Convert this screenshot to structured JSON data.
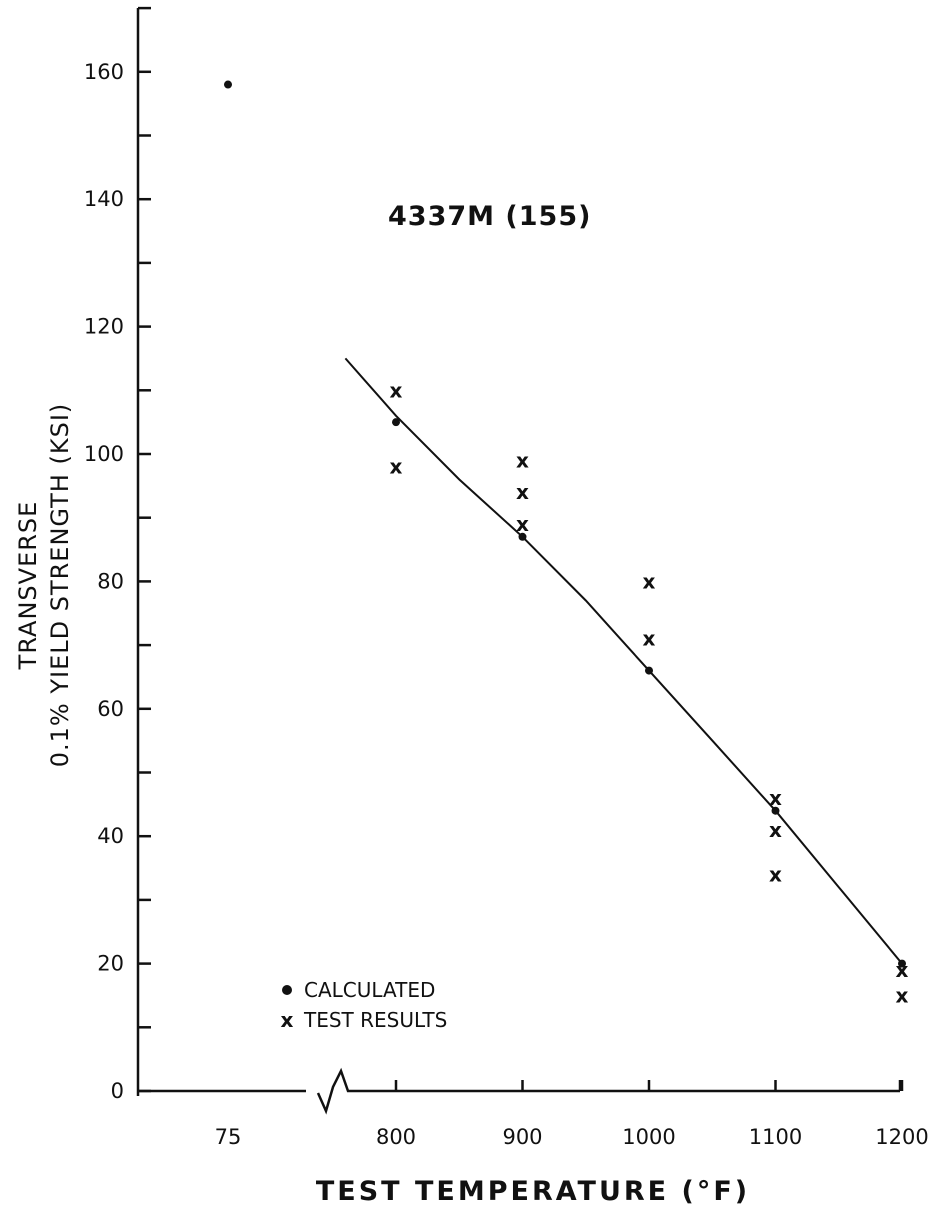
{
  "chart_data": {
    "type": "scatter",
    "title": "4337M (155)",
    "xlabel": "TEST TEMPERATURE (°F)",
    "ylabel": [
      "TRANSVERSE",
      "0.1% YIELD STRENGTH (KSI)"
    ],
    "ylim": [
      0,
      160
    ],
    "y_ticks": [
      0,
      20,
      40,
      60,
      80,
      100,
      120,
      140,
      160
    ],
    "x_ticks": [
      "75",
      "800",
      "900",
      "1000",
      "1100",
      "1200"
    ],
    "x_axis_break": "between 75 and 800",
    "grid": false,
    "legend_position": "bottom-left",
    "series": [
      {
        "name": "CALCULATED",
        "marker": "dot",
        "points": [
          {
            "x": 75,
            "y": 158
          },
          {
            "x": 800,
            "y": 105
          },
          {
            "x": 900,
            "y": 87
          },
          {
            "x": 1000,
            "y": 66
          },
          {
            "x": 1100,
            "y": 44
          },
          {
            "x": 1200,
            "y": 20
          }
        ]
      },
      {
        "name": "TEST RESULTS",
        "marker": "x",
        "points": [
          {
            "x": 800,
            "y": 110
          },
          {
            "x": 800,
            "y": 98
          },
          {
            "x": 900,
            "y": 99
          },
          {
            "x": 900,
            "y": 94
          },
          {
            "x": 900,
            "y": 89
          },
          {
            "x": 1000,
            "y": 80
          },
          {
            "x": 1000,
            "y": 71
          },
          {
            "x": 1100,
            "y": 46
          },
          {
            "x": 1100,
            "y": 41
          },
          {
            "x": 1100,
            "y": 34
          },
          {
            "x": 1200,
            "y": 19
          },
          {
            "x": 1200,
            "y": 15
          }
        ]
      }
    ],
    "fit_curve": [
      {
        "x": 760,
        "y": 115
      },
      {
        "x": 800,
        "y": 106
      },
      {
        "x": 850,
        "y": 96
      },
      {
        "x": 900,
        "y": 87
      },
      {
        "x": 950,
        "y": 77
      },
      {
        "x": 1000,
        "y": 66
      },
      {
        "x": 1050,
        "y": 55
      },
      {
        "x": 1100,
        "y": 44
      },
      {
        "x": 1150,
        "y": 32
      },
      {
        "x": 1200,
        "y": 20
      }
    ]
  }
}
